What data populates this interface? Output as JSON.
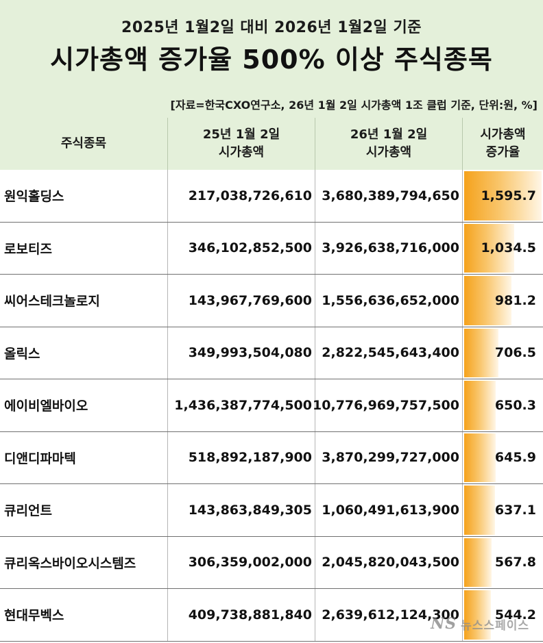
{
  "header": {
    "subtitle": "2025년 1월2일 대비 2026년 1월2일 기준",
    "title": "시가총액 증가율 500% 이상 주식종목",
    "source": "[자료=한국CXO연구소, 26년 1월 2일 시가총액 1조 클럽 기준, 단위:원, %]"
  },
  "columns": {
    "name": "주식종목",
    "cap25_line1": "25년 1월 2일",
    "cap25_line2": "시가총액",
    "cap26_line1": "26년 1월 2일",
    "cap26_line2": "시가총액",
    "rate_line1": "시가총액",
    "rate_line2": "증가율"
  },
  "rows": [
    {
      "name": "원익홀딩스",
      "cap25": "217,038,726,610",
      "cap26": "3,680,389,794,650",
      "rate": "1,595.7",
      "rate_value": 1595.7
    },
    {
      "name": "로보티즈",
      "cap25": "346,102,852,500",
      "cap26": "3,926,638,716,000",
      "rate": "1,034.5",
      "rate_value": 1034.5
    },
    {
      "name": "씨어스테크놀로지",
      "cap25": "143,967,769,600",
      "cap26": "1,556,636,652,000",
      "rate": "981.2",
      "rate_value": 981.2
    },
    {
      "name": "올릭스",
      "cap25": "349,993,504,080",
      "cap26": "2,822,545,643,400",
      "rate": "706.5",
      "rate_value": 706.5
    },
    {
      "name": "에이비엘바이오",
      "cap25": "1,436,387,774,500",
      "cap26": "10,776,969,757,500",
      "rate": "650.3",
      "rate_value": 650.3
    },
    {
      "name": "디앤디파마텍",
      "cap25": "518,892,187,900",
      "cap26": "3,870,299,727,000",
      "rate": "645.9",
      "rate_value": 645.9
    },
    {
      "name": "큐리언트",
      "cap25": "143,863,849,305",
      "cap26": "1,060,491,613,900",
      "rate": "637.1",
      "rate_value": 637.1
    },
    {
      "name": "큐리옥스바이오시스템즈",
      "cap25": "306,359,002,000",
      "cap26": "2,045,820,043,500",
      "rate": "567.8",
      "rate_value": 567.8
    },
    {
      "name": "현대무벡스",
      "cap25": "409,738,881,840",
      "cap26": "2,639,612,124,300",
      "rate": "544.2",
      "rate_value": 544.2
    }
  ],
  "colors": {
    "header_bg": "#e4f0da",
    "bar_start": "#f5a21c",
    "bar_end": "#fff6e6"
  },
  "watermark": {
    "logo": "NS",
    "text": "뉴스스페이스"
  }
}
